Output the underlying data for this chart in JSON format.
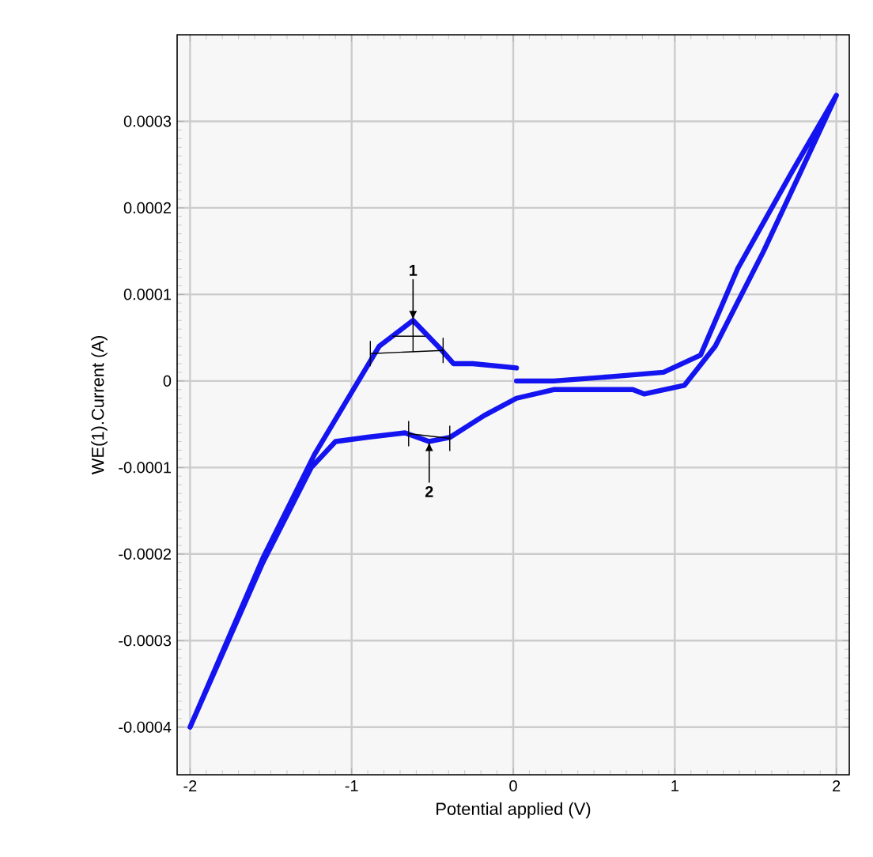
{
  "chart_data": {
    "type": "line",
    "xlabel": "Potential applied (V)",
    "ylabel": "WE(1).Current (A)",
    "xlim": [
      -2.08,
      2.08
    ],
    "ylim": [
      -0.000455,
      0.0004
    ],
    "xticks": [
      -2,
      -1,
      0,
      1,
      2
    ],
    "yticks": [
      -0.0004,
      -0.0003,
      -0.0002,
      -0.0001,
      0,
      0.0001,
      0.0002,
      0.0003
    ],
    "grid": true,
    "marker": "none",
    "line_style": "solid",
    "annotations": [
      {
        "text": "1",
        "x": -0.62,
        "y": 7e-05
      },
      {
        "text": "2",
        "x": -0.52,
        "y": -7e-05
      }
    ],
    "series": [
      {
        "color": "#1414f0",
        "x": [
          0.02,
          -0.25,
          -0.37,
          -0.44,
          -0.62,
          -0.83,
          -1.23,
          -1.55,
          -2.0,
          -1.55,
          -1.25,
          -1.1,
          -0.9,
          -0.67,
          -0.52,
          -0.39,
          -0.18,
          0.02,
          0.25,
          0.74,
          0.81,
          1.06,
          1.25,
          1.55,
          2.0,
          1.72,
          1.39,
          1.16,
          0.93,
          0.61,
          0.25,
          0.02
        ],
        "values": [
          1.5e-05,
          2e-05,
          2e-05,
          3.5e-05,
          7e-05,
          4e-05,
          -8.5e-05,
          -0.000205,
          -0.0004,
          -0.00021,
          -0.0001,
          -7e-05,
          -6.5e-05,
          -6e-05,
          -7e-05,
          -6.5e-05,
          -4e-05,
          -2e-05,
          -1e-05,
          -1e-05,
          -1.5e-05,
          -5e-06,
          4e-05,
          0.00015,
          0.00033,
          0.00024,
          0.00013,
          3e-05,
          1e-05,
          5e-06,
          0.0,
          0.0
        ]
      }
    ]
  }
}
